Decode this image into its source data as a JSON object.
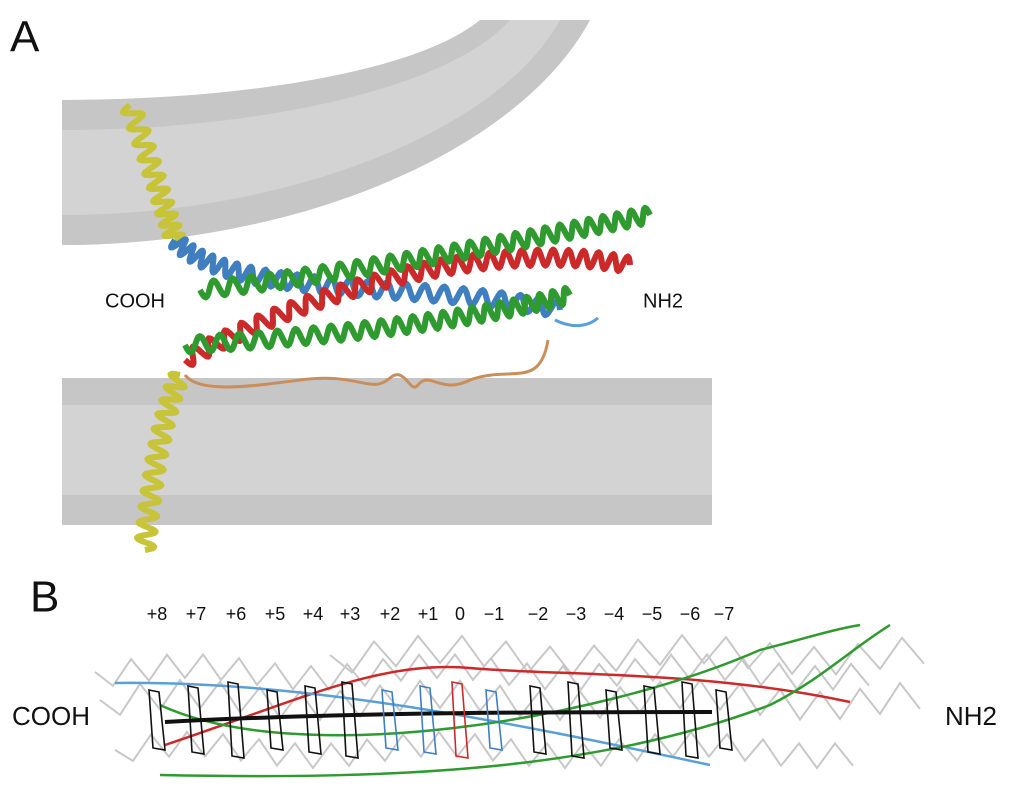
{
  "panel_a": {
    "label": "A",
    "left_label": "COOH",
    "right_label": "NH2"
  },
  "panel_b": {
    "label": "B",
    "left_label": "COOH",
    "right_label": "NH2",
    "layers": [
      "+8",
      "+7",
      "+6",
      "+5",
      "+4",
      "+3",
      "+2",
      "+1",
      "0",
      "−1",
      "−2",
      "−3",
      "−4",
      "−5",
      "−6",
      "−7"
    ]
  }
}
